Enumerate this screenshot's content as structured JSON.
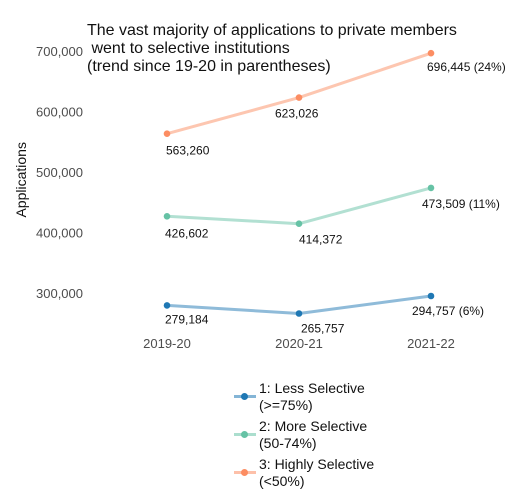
{
  "chart_data": {
    "type": "line",
    "title_lines": [
      "The vast majority of applications to private members",
      " went to selective institutions",
      "(trend since 19-20 in parentheses)"
    ],
    "xlabel": "",
    "ylabel": "Applications",
    "categories": [
      "2019-20",
      "2020-21",
      "2021-22"
    ],
    "y_ticks": [
      300000,
      400000,
      500000,
      600000,
      700000
    ],
    "y_tick_labels": [
      "300,000",
      "400,000",
      "500,000",
      "600,000",
      "700,000"
    ],
    "ylim": [
      255000,
      715000
    ],
    "grid": false,
    "legend_position": "bottom",
    "series": [
      {
        "name": "1: Less Selective (>=75%)",
        "legend_lines": [
          "1: Less Selective",
          "(>=75%)"
        ],
        "color": "#1f78b4",
        "values": [
          279184,
          265757,
          294757
        ],
        "labels": [
          "279,184",
          "265,757",
          "294,757 (6%)"
        ]
      },
      {
        "name": "2: More Selective (50-74%)",
        "legend_lines": [
          "2: More Selective",
          "(50-74%)"
        ],
        "color": "#66c2a5",
        "values": [
          426602,
          414372,
          473509
        ],
        "labels": [
          "426,602",
          "414,372",
          "473,509 (11%)"
        ]
      },
      {
        "name": "3: Highly Selective (<50%)",
        "legend_lines": [
          "3: Highly Selective",
          "(<50%)"
        ],
        "color": "#fc8d62",
        "values": [
          563260,
          623026,
          696445
        ],
        "labels": [
          "563,260",
          "623,026",
          "696,445 (24%)"
        ]
      }
    ]
  }
}
